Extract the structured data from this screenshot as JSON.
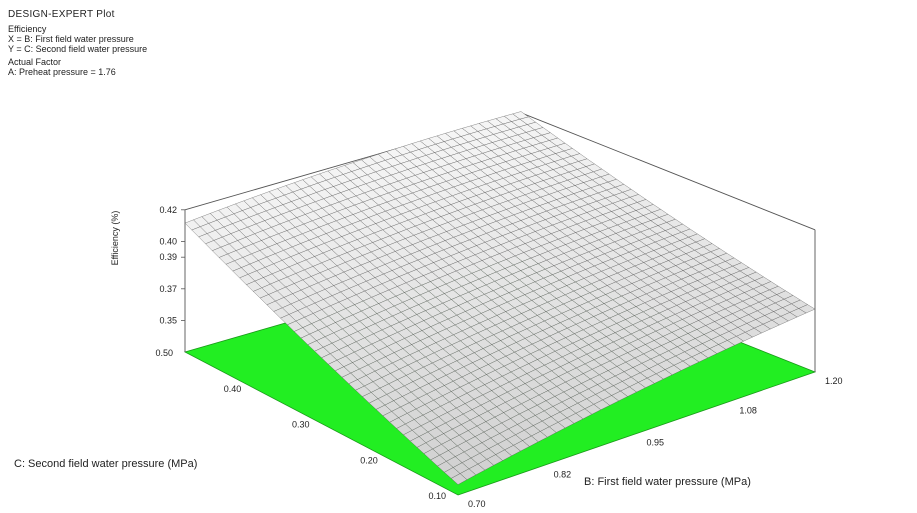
{
  "header": {
    "title": "DESIGN-EXPERT Plot",
    "response_label": "Efficiency",
    "x_axis_line": "X = B: First field water pressure",
    "y_axis_line": "Y = C: Second field water pressure",
    "actual_factor_heading": "Actual Factor",
    "actual_factor_value": "A: Preheat pressure = 1.76"
  },
  "chart_data": {
    "type": "surface",
    "x": {
      "label": "B: First field water pressure (MPa)",
      "min": 0.7,
      "max": 1.2,
      "ticks": [
        "0.70",
        "0.82",
        "0.95",
        "1.08",
        "1.20"
      ]
    },
    "y": {
      "label": "C: Second field water pressure (MPa)",
      "min": 0.1,
      "max": 0.5,
      "ticks": [
        "0.10",
        "0.20",
        "0.30",
        "0.40",
        "0.50"
      ]
    },
    "z": {
      "label": "Efficiency (%)",
      "min": 0.33,
      "max": 0.42,
      "ticks": [
        "0.35",
        "0.37",
        "0.39",
        "0.40",
        "0.42"
      ]
    },
    "surface_corners": {
      "x0.70_y0.10": 0.34,
      "x1.20_y0.10": 0.37,
      "x0.70_y0.50": 0.41,
      "x1.20_y0.50": 0.42
    },
    "floor_color": "#22ee22",
    "mesh_color": "#555555"
  }
}
